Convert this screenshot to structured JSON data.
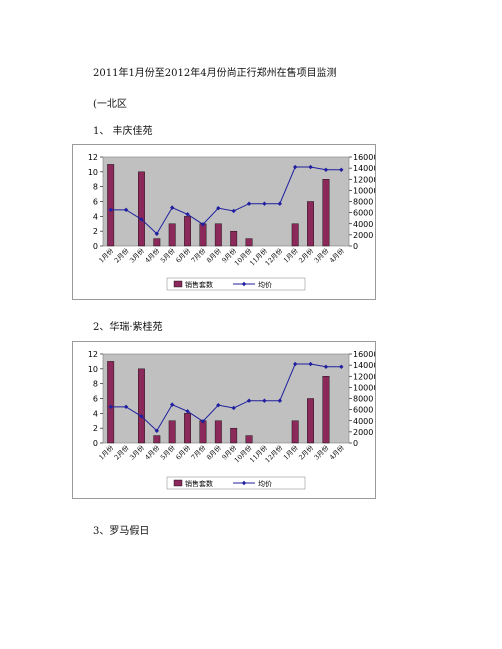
{
  "doc": {
    "title": "2011年1月份至2012年4月份尚正行郑州在售项目监测",
    "region": "(一北区",
    "sections": [
      {
        "label": "1、 丰庆佳苑"
      },
      {
        "label": "2、华瑞·紫桂苑"
      },
      {
        "label": "3、罗马假日"
      }
    ]
  },
  "chart_data": [
    {
      "type": "bar+line",
      "categories": [
        "1月份",
        "2月份",
        "3月份",
        "4月份",
        "5月份",
        "6月份",
        "7月份",
        "8月份",
        "9月份",
        "10月份",
        "11月份",
        "12月份",
        "1月份",
        "2月份",
        "3月份",
        "4月份"
      ],
      "series": [
        {
          "name": "销售套数",
          "type": "bar",
          "axis": "left",
          "color": "#8B2A5A",
          "values": [
            11,
            0,
            10,
            1,
            3,
            4,
            3,
            3,
            2,
            1,
            0,
            0,
            3,
            6,
            9,
            0
          ]
        },
        {
          "name": "均价",
          "type": "line",
          "axis": "right",
          "color": "#1F1FA0",
          "values": [
            6500,
            6500,
            4800,
            2200,
            6900,
            5700,
            3900,
            6800,
            6300,
            7600,
            7600,
            7600,
            14200,
            14200,
            13700,
            13700
          ]
        }
      ],
      "y_left": {
        "ticks": [
          "0",
          "2",
          "4",
          "6",
          "8",
          "10",
          "12"
        ],
        "range": [
          0,
          12
        ]
      },
      "y_right": {
        "ticks": [
          "0",
          "2000",
          "4000",
          "6000",
          "8000",
          "10000",
          "12000",
          "14000",
          "16000"
        ],
        "range": [
          0,
          16000
        ]
      },
      "legend": {
        "position": "bottom",
        "bar_label": "销售套数",
        "line_label": "均价"
      },
      "grid": false
    },
    {
      "type": "bar+line",
      "categories": [
        "1月份",
        "2月份",
        "3月份",
        "4月份",
        "5月份",
        "6月份",
        "7月份",
        "8月份",
        "9月份",
        "10月份",
        "11月份",
        "12月份",
        "1月份",
        "2月份",
        "3月份",
        "4月份"
      ],
      "series": [
        {
          "name": "销售套数",
          "type": "bar",
          "axis": "left",
          "color": "#8B2A5A",
          "values": [
            11,
            0,
            10,
            1,
            3,
            4,
            3,
            3,
            2,
            1,
            0,
            0,
            3,
            6,
            9,
            0
          ]
        },
        {
          "name": "均价",
          "type": "line",
          "axis": "right",
          "color": "#1F1FA0",
          "values": [
            6500,
            6500,
            4800,
            2200,
            6900,
            5700,
            3900,
            6800,
            6300,
            7600,
            7600,
            7600,
            14200,
            14200,
            13700,
            13700
          ]
        }
      ],
      "y_left": {
        "ticks": [
          "0",
          "2",
          "4",
          "6",
          "8",
          "10",
          "12"
        ],
        "range": [
          0,
          12
        ]
      },
      "y_right": {
        "ticks": [
          "0",
          "2000",
          "4000",
          "6000",
          "8000",
          "10000",
          "12000",
          "14000",
          "16000"
        ],
        "range": [
          0,
          16000
        ]
      },
      "legend": {
        "position": "bottom",
        "bar_label": "销售套数",
        "line_label": "均价"
      },
      "grid": false
    }
  ]
}
